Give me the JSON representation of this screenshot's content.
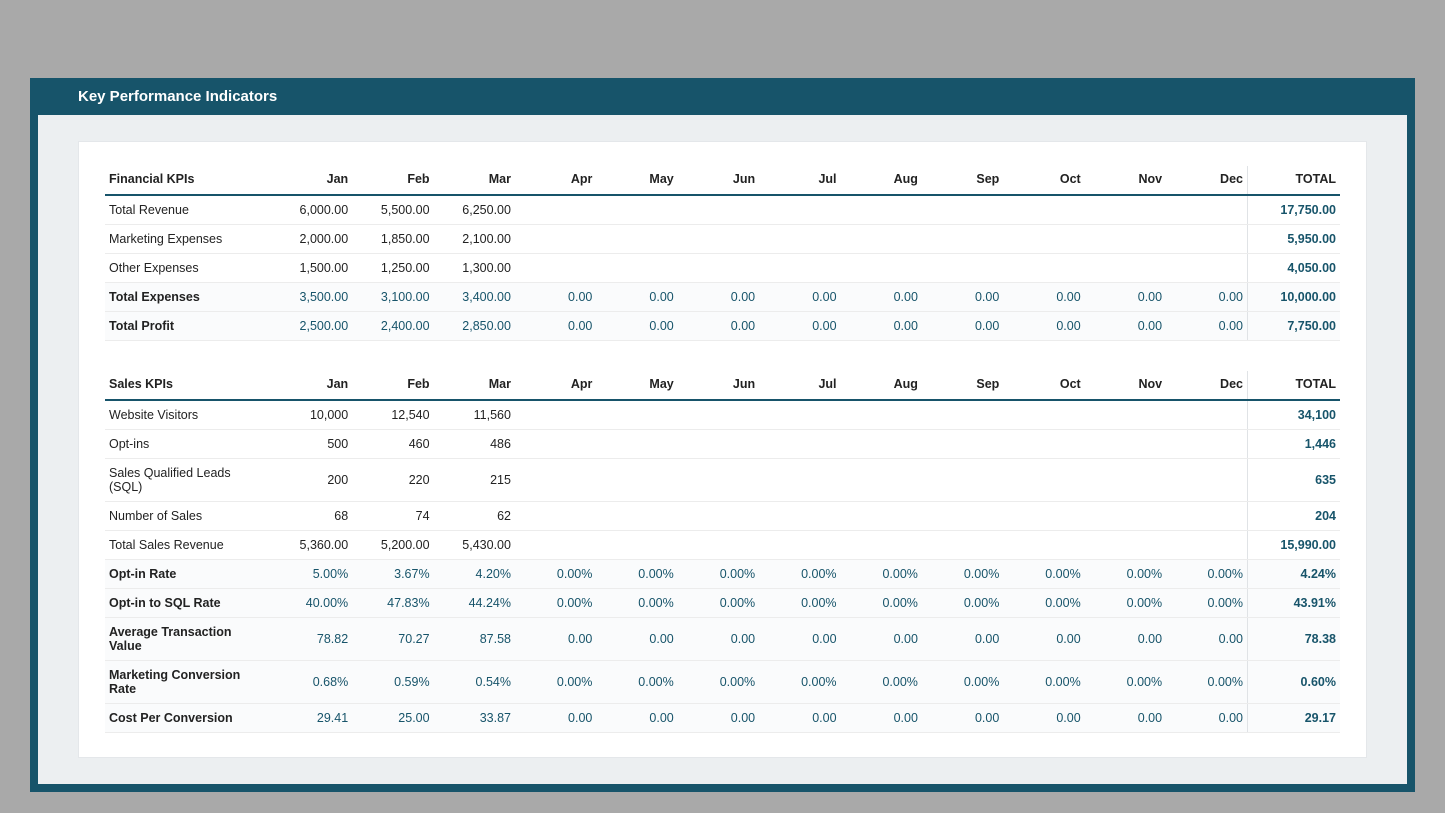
{
  "page_title": "Key Performance Indicators",
  "colors": {
    "page_bg": "#a9a9a9",
    "frame": "#17546a",
    "inner_bg": "#eceff1",
    "card_bg": "#ffffff",
    "header_underline": "#17546a",
    "row_border": "#ececec",
    "calc_bg": "#fafbfc",
    "accent_text": "#17546a",
    "text": "#222222"
  },
  "months": [
    "Jan",
    "Feb",
    "Mar",
    "Apr",
    "May",
    "Jun",
    "Jul",
    "Aug",
    "Sep",
    "Oct",
    "Nov",
    "Dec"
  ],
  "total_label": "TOTAL",
  "sections": [
    {
      "header": "Financial KPIs",
      "rows": [
        {
          "label": "Total Revenue",
          "calc": false,
          "cells": [
            "6,000.00",
            "5,500.00",
            "6,250.00",
            "",
            "",
            "",
            "",
            "",
            "",
            "",
            "",
            ""
          ],
          "total": "17,750.00"
        },
        {
          "label": "Marketing Expenses",
          "calc": false,
          "cells": [
            "2,000.00",
            "1,850.00",
            "2,100.00",
            "",
            "",
            "",
            "",
            "",
            "",
            "",
            "",
            ""
          ],
          "total": "5,950.00"
        },
        {
          "label": "Other Expenses",
          "calc": false,
          "cells": [
            "1,500.00",
            "1,250.00",
            "1,300.00",
            "",
            "",
            "",
            "",
            "",
            "",
            "",
            "",
            ""
          ],
          "total": "4,050.00"
        },
        {
          "label": "Total Expenses",
          "calc": true,
          "cells": [
            "3,500.00",
            "3,100.00",
            "3,400.00",
            "0.00",
            "0.00",
            "0.00",
            "0.00",
            "0.00",
            "0.00",
            "0.00",
            "0.00",
            "0.00"
          ],
          "total": "10,000.00"
        },
        {
          "label": "Total Profit",
          "calc": true,
          "cells": [
            "2,500.00",
            "2,400.00",
            "2,850.00",
            "0.00",
            "0.00",
            "0.00",
            "0.00",
            "0.00",
            "0.00",
            "0.00",
            "0.00",
            "0.00"
          ],
          "total": "7,750.00"
        }
      ]
    },
    {
      "header": "Sales KPIs",
      "rows": [
        {
          "label": "Website Visitors",
          "calc": false,
          "cells": [
            "10,000",
            "12,540",
            "11,560",
            "",
            "",
            "",
            "",
            "",
            "",
            "",
            "",
            ""
          ],
          "total": "34,100"
        },
        {
          "label": "Opt-ins",
          "calc": false,
          "cells": [
            "500",
            "460",
            "486",
            "",
            "",
            "",
            "",
            "",
            "",
            "",
            "",
            ""
          ],
          "total": "1,446"
        },
        {
          "label": "Sales Qualified Leads (SQL)",
          "calc": false,
          "cells": [
            "200",
            "220",
            "215",
            "",
            "",
            "",
            "",
            "",
            "",
            "",
            "",
            ""
          ],
          "total": "635"
        },
        {
          "label": "Number of Sales",
          "calc": false,
          "cells": [
            "68",
            "74",
            "62",
            "",
            "",
            "",
            "",
            "",
            "",
            "",
            "",
            ""
          ],
          "total": "204"
        },
        {
          "label": "Total Sales Revenue",
          "calc": false,
          "cells": [
            "5,360.00",
            "5,200.00",
            "5,430.00",
            "",
            "",
            "",
            "",
            "",
            "",
            "",
            "",
            ""
          ],
          "total": "15,990.00"
        },
        {
          "label": "Opt-in Rate",
          "calc": true,
          "cells": [
            "5.00%",
            "3.67%",
            "4.20%",
            "0.00%",
            "0.00%",
            "0.00%",
            "0.00%",
            "0.00%",
            "0.00%",
            "0.00%",
            "0.00%",
            "0.00%"
          ],
          "total": "4.24%"
        },
        {
          "label": "Opt-in to SQL Rate",
          "calc": true,
          "cells": [
            "40.00%",
            "47.83%",
            "44.24%",
            "0.00%",
            "0.00%",
            "0.00%",
            "0.00%",
            "0.00%",
            "0.00%",
            "0.00%",
            "0.00%",
            "0.00%"
          ],
          "total": "43.91%"
        },
        {
          "label": "Average Transaction Value",
          "calc": true,
          "cells": [
            "78.82",
            "70.27",
            "87.58",
            "0.00",
            "0.00",
            "0.00",
            "0.00",
            "0.00",
            "0.00",
            "0.00",
            "0.00",
            "0.00"
          ],
          "total": "78.38"
        },
        {
          "label": "Marketing Conversion Rate",
          "calc": true,
          "cells": [
            "0.68%",
            "0.59%",
            "0.54%",
            "0.00%",
            "0.00%",
            "0.00%",
            "0.00%",
            "0.00%",
            "0.00%",
            "0.00%",
            "0.00%",
            "0.00%"
          ],
          "total": "0.60%"
        },
        {
          "label": "Cost Per Conversion",
          "calc": true,
          "cells": [
            "29.41",
            "25.00",
            "33.87",
            "0.00",
            "0.00",
            "0.00",
            "0.00",
            "0.00",
            "0.00",
            "0.00",
            "0.00",
            "0.00"
          ],
          "total": "29.17"
        }
      ]
    }
  ]
}
